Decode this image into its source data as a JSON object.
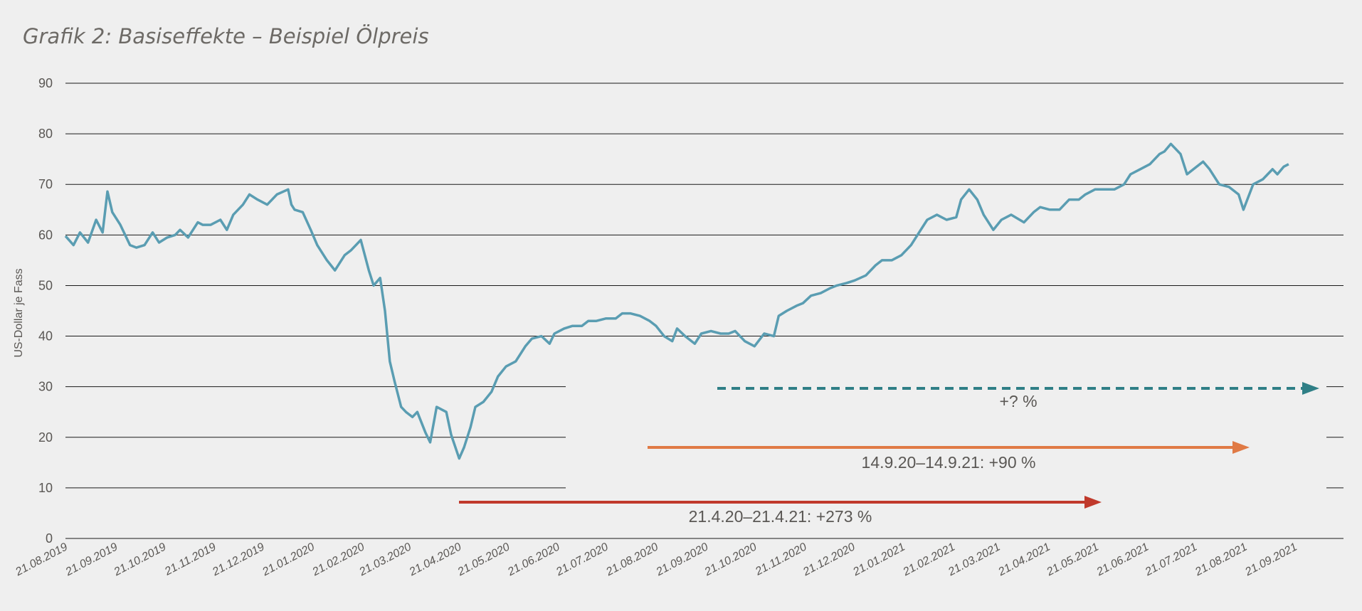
{
  "chart_data": {
    "type": "line",
    "title": "Grafik 2: Basiseffekte – Beispiel Ölpreis",
    "ylabel": "US-Dollar je Fass",
    "xlabel": "",
    "ylim": [
      0,
      90
    ],
    "yticks": [
      0,
      10,
      20,
      30,
      40,
      50,
      60,
      70,
      80,
      90
    ],
    "grid": true,
    "x_tick_labels": [
      "21.08.2019",
      "21.09.2019",
      "21.10.2019",
      "21.11.2019",
      "21.12.2019",
      "21.01.2020",
      "21.02.2020",
      "21.03.2020",
      "21.04.2020",
      "21.05.2020",
      "21.06.2020",
      "21.07.2020",
      "21.08.2020",
      "21.09.2020",
      "21.10.2020",
      "21.11.2020",
      "21.12.2020",
      "21.01.2021",
      "21.02.2021",
      "21.03.2021",
      "21.04.2021",
      "21.05.2021",
      "21.06.2021",
      "21.07.2021",
      "21.08.2021",
      "21.09.2021"
    ],
    "series": [
      {
        "color": "#5a9db2",
        "x": [
          "21.08.2019",
          "26.08.2019",
          "30.08.2019",
          "04.09.2019",
          "09.09.2019",
          "13.09.2019",
          "16.09.2019",
          "19.09.2019",
          "24.09.2019",
          "30.09.2019",
          "04.10.2019",
          "09.10.2019",
          "14.10.2019",
          "18.10.2019",
          "23.10.2019",
          "28.10.2019",
          "31.10.2019",
          "05.11.2019",
          "11.11.2019",
          "14.11.2019",
          "19.11.2019",
          "25.11.2019",
          "29.11.2019",
          "03.12.2019",
          "09.12.2019",
          "13.12.2019",
          "18.12.2019",
          "24.12.2019",
          "30.12.2019",
          "06.01.2020",
          "08.01.2020",
          "10.01.2020",
          "15.01.2020",
          "20.01.2020",
          "24.01.2020",
          "30.01.2020",
          "04.02.2020",
          "10.02.2020",
          "14.02.2020",
          "20.02.2020",
          "25.02.2020",
          "28.02.2020",
          "03.03.2020",
          "06.03.2020",
          "09.03.2020",
          "12.03.2020",
          "16.03.2020",
          "19.03.2020",
          "23.03.2020",
          "26.03.2020",
          "31.03.2020",
          "03.04.2020",
          "07.04.2020",
          "13.04.2020",
          "16.04.2020",
          "21.04.2020",
          "24.04.2020",
          "28.04.2020",
          "01.05.2020",
          "06.05.2020",
          "11.05.2020",
          "15.05.2020",
          "20.05.2020",
          "26.05.2020",
          "01.06.2020",
          "05.06.2020",
          "11.06.2020",
          "16.06.2020",
          "19.06.2020",
          "25.06.2020",
          "30.06.2020",
          "06.07.2020",
          "10.07.2020",
          "15.07.2020",
          "21.07.2020",
          "27.07.2020",
          "31.07.2020",
          "05.08.2020",
          "11.08.2020",
          "17.08.2020",
          "21.08.2020",
          "26.08.2020",
          "31.08.2020",
          "03.09.2020",
          "08.09.2020",
          "14.09.2020",
          "18.09.2020",
          "24.09.2020",
          "30.09.2020",
          "05.10.2020",
          "09.10.2020",
          "15.10.2020",
          "21.10.2020",
          "27.10.2020",
          "02.11.2020",
          "05.11.2020",
          "10.11.2020",
          "16.11.2020",
          "20.11.2020",
          "25.11.2020",
          "01.12.2020",
          "07.12.2020",
          "11.12.2020",
          "17.12.2020",
          "22.12.2020",
          "29.12.2020",
          "04.01.2021",
          "08.01.2021",
          "14.01.2021",
          "20.01.2021",
          "26.01.2021",
          "01.02.2021",
          "05.02.2021",
          "11.02.2021",
          "17.02.2021",
          "23.02.2021",
          "26.02.2021",
          "03.03.2021",
          "08.03.2021",
          "12.03.2021",
          "18.03.2021",
          "23.03.2021",
          "29.03.2021",
          "06.04.2021",
          "12.04.2021",
          "16.04.2021",
          "22.04.2021",
          "28.04.2021",
          "04.05.2021",
          "10.05.2021",
          "14.05.2021",
          "20.05.2021",
          "26.05.2021",
          "01.06.2021",
          "07.06.2021",
          "11.06.2021",
          "17.06.2021",
          "23.06.2021",
          "29.06.2021",
          "02.07.2021",
          "06.07.2021",
          "12.07.2021",
          "16.07.2021",
          "20.07.2021",
          "26.07.2021",
          "30.07.2021",
          "05.08.2021",
          "11.08.2021",
          "17.08.2021",
          "20.08.2021",
          "26.08.2021",
          "01.09.2021",
          "07.09.2021",
          "10.09.2021",
          "14.09.2021",
          "17.09.2021"
        ],
        "y": [
          59.8,
          58,
          60.5,
          58.5,
          63,
          60.5,
          68.6,
          64.5,
          62,
          58,
          57.5,
          58,
          60.5,
          58.5,
          59.5,
          60,
          61,
          59.5,
          62.5,
          62,
          62,
          63,
          61,
          64,
          66,
          68,
          67,
          66,
          68,
          69,
          66,
          65,
          64.5,
          61,
          58,
          55,
          53,
          56,
          57,
          59,
          53,
          50,
          51.5,
          45,
          35,
          31,
          26,
          25,
          24,
          25,
          21,
          19,
          26,
          25,
          20.5,
          15.8,
          18,
          22,
          26,
          27,
          29,
          32,
          34,
          35,
          38,
          39.5,
          40,
          38.5,
          40.5,
          41.5,
          42,
          42,
          43,
          43,
          43.5,
          43.5,
          44.5,
          44.5,
          44,
          43,
          42,
          40,
          39,
          41.5,
          40,
          38.5,
          40.5,
          41,
          40.5,
          40.5,
          41,
          39,
          38,
          40.5,
          40,
          44,
          45,
          46,
          46.5,
          48,
          48.5,
          49.5,
          50,
          50.5,
          51,
          52,
          54,
          55,
          55,
          56,
          58,
          61,
          63,
          64,
          63,
          63.5,
          67,
          69,
          67,
          64,
          61,
          63,
          64,
          62.5,
          64.5,
          65.5,
          65,
          65,
          67,
          67,
          68,
          69,
          69,
          69,
          70,
          72,
          73,
          74,
          76,
          76.5,
          78,
          76,
          72,
          73,
          74.5,
          73,
          70,
          69.5,
          68,
          65,
          70,
          71,
          73,
          72,
          73.5,
          74
        ]
      }
    ]
  },
  "annotations": {
    "arrow1": {
      "label": "21.4.20–21.4.21: +273 %",
      "color": "#c0392b"
    },
    "arrow2": {
      "label": "14.9.20–14.9.21: +90 %",
      "color": "#e07a45"
    },
    "arrow3": {
      "label": "+? %",
      "color": "#2f7f86"
    }
  }
}
